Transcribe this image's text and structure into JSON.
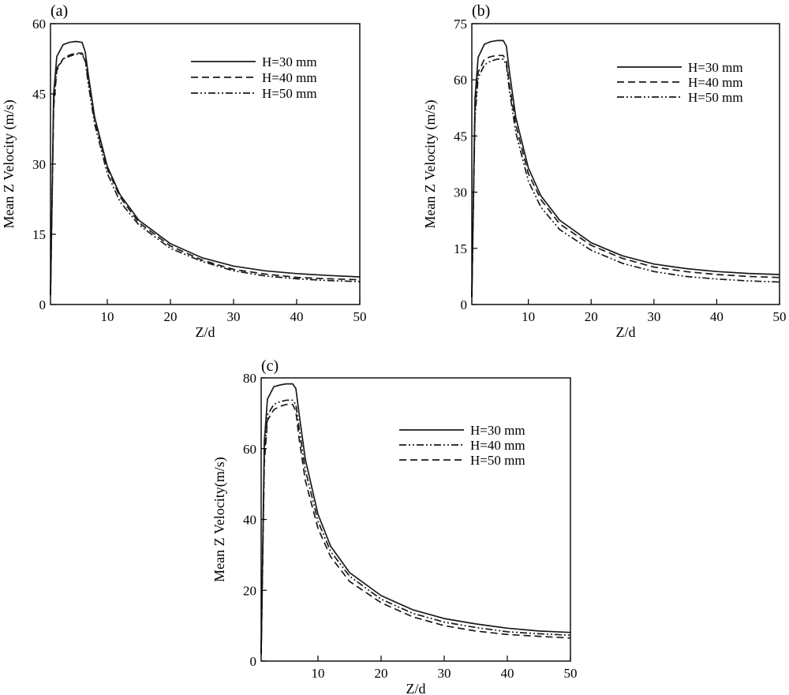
{
  "chart_data": [
    {
      "panel": "(a)",
      "type": "line",
      "xlabel": "Z/d",
      "ylabel": "Mean Z Velocity (m/s)",
      "xlim": [
        1,
        50
      ],
      "ylim": [
        0,
        60
      ],
      "xticks": [
        10,
        20,
        30,
        40,
        50
      ],
      "yticks": [
        0,
        15,
        30,
        45,
        60
      ],
      "grid": false,
      "legend": "top-right",
      "series": [
        {
          "name": "H=30 mm",
          "style": "solid",
          "x": [
            1,
            1.5,
            2,
            3,
            4,
            5,
            6,
            6.5,
            7,
            8,
            10,
            12,
            15,
            20,
            25,
            30,
            35,
            40,
            45,
            50
          ],
          "y": [
            2,
            45,
            53,
            55.5,
            56,
            56.2,
            56,
            54,
            49,
            40,
            29.5,
            23.5,
            18,
            13,
            10,
            8.2,
            7.2,
            6.6,
            6.2,
            5.9
          ]
        },
        {
          "name": "H=40 mm",
          "style": "dashed",
          "x": [
            1,
            1.5,
            2,
            3,
            4,
            5,
            6,
            6.5,
            7,
            8,
            10,
            12,
            15,
            20,
            25,
            30,
            35,
            40,
            45,
            50
          ],
          "y": [
            2,
            42,
            50,
            52.5,
            53.3,
            53.7,
            53.7,
            52.5,
            48,
            39.5,
            29,
            23,
            17.5,
            12.5,
            9.5,
            7.5,
            6.5,
            5.8,
            5.5,
            5.3
          ]
        },
        {
          "name": "H=50 mm",
          "style": "dashdotdot",
          "x": [
            1,
            1.5,
            2,
            3,
            4,
            5,
            6,
            6.5,
            7,
            8,
            10,
            12,
            15,
            20,
            25,
            30,
            35,
            40,
            45,
            50
          ],
          "y": [
            2,
            43,
            50.5,
            52.5,
            53,
            53.5,
            53.5,
            52,
            47,
            38.5,
            28,
            22,
            17,
            12,
            9.2,
            7.2,
            6.1,
            5.5,
            5.1,
            4.9
          ]
        }
      ]
    },
    {
      "panel": "(b)",
      "type": "line",
      "xlabel": "Z/d",
      "ylabel": "Mean Z Velocity (m/s)",
      "xlim": [
        1,
        50
      ],
      "ylim": [
        0,
        75
      ],
      "xticks": [
        10,
        20,
        30,
        40,
        50
      ],
      "yticks": [
        0,
        15,
        30,
        45,
        60,
        75
      ],
      "grid": false,
      "legend": "top-right",
      "series": [
        {
          "name": "H=30 mm",
          "style": "solid",
          "x": [
            1,
            1.5,
            2,
            3,
            4,
            5,
            6,
            6.5,
            7,
            8,
            10,
            12,
            15,
            20,
            25,
            30,
            35,
            40,
            45,
            50
          ],
          "y": [
            2,
            55,
            66,
            69.5,
            70.2,
            70.5,
            70.5,
            69,
            62,
            50,
            36.5,
            29,
            22.5,
            16.5,
            13,
            10.8,
            9.6,
            8.8,
            8.3,
            8
          ]
        },
        {
          "name": "H=40 mm",
          "style": "dashed",
          "x": [
            1,
            1.5,
            2,
            3,
            4,
            5,
            6,
            6.5,
            7,
            8,
            10,
            12,
            15,
            20,
            25,
            30,
            35,
            40,
            45,
            50
          ],
          "y": [
            2,
            52,
            62,
            65.5,
            66.2,
            66.5,
            66.5,
            65,
            58.5,
            48,
            35,
            28,
            21.5,
            15.8,
            12.3,
            10,
            8.8,
            8,
            7.5,
            7.2
          ]
        },
        {
          "name": "H=50 mm",
          "style": "dashdotdot",
          "x": [
            1,
            1.5,
            2,
            3,
            4,
            5,
            6,
            6.5,
            7,
            8,
            10,
            12,
            15,
            20,
            25,
            30,
            35,
            40,
            45,
            50
          ],
          "y": [
            2,
            50,
            60.5,
            64,
            65,
            65.5,
            65.5,
            64,
            57,
            46,
            33,
            26,
            20,
            14.5,
            11,
            8.8,
            7.5,
            6.8,
            6.3,
            6
          ]
        }
      ]
    },
    {
      "panel": "(c)",
      "type": "line",
      "xlabel": "Z/d",
      "ylabel": "Mean Z Velocity(m/s)",
      "xlim": [
        1,
        50
      ],
      "ylim": [
        0,
        80
      ],
      "xticks": [
        10,
        20,
        30,
        40,
        50
      ],
      "yticks": [
        0,
        20,
        40,
        60,
        80
      ],
      "grid": false,
      "legend": "top-right",
      "series": [
        {
          "name": "H=30 mm",
          "style": "solid",
          "x": [
            1,
            1.5,
            2,
            3,
            4,
            5,
            6,
            6.5,
            7,
            8,
            10,
            12,
            15,
            20,
            25,
            30,
            35,
            40,
            45,
            50
          ],
          "y": [
            2,
            62,
            74,
            77.5,
            78,
            78.3,
            78.3,
            77,
            70,
            57,
            41.5,
            32.5,
            25,
            18.5,
            14.5,
            12,
            10.5,
            9.3,
            8.5,
            8.1
          ]
        },
        {
          "name": "H=40 mm",
          "style": "dashdotdot",
          "x": [
            1,
            1.5,
            2,
            3,
            4,
            5,
            6,
            6.5,
            7,
            8,
            10,
            12,
            15,
            20,
            25,
            30,
            35,
            40,
            45,
            50
          ],
          "y": [
            2,
            58,
            69.5,
            72.5,
            73.3,
            73.7,
            73.7,
            72.5,
            66,
            54,
            39.5,
            31,
            24,
            17.5,
            13.5,
            11,
            9.5,
            8.3,
            7.7,
            7.3
          ]
        },
        {
          "name": "H=50 mm",
          "style": "dashed",
          "x": [
            1,
            1.5,
            2,
            3,
            4,
            5,
            6,
            6.5,
            7,
            8,
            10,
            12,
            15,
            20,
            25,
            30,
            35,
            40,
            45,
            50
          ],
          "y": [
            2,
            56,
            68,
            71,
            72,
            72.5,
            72.5,
            70.5,
            63,
            51,
            37.5,
            29.5,
            22.5,
            16.5,
            12.5,
            10,
            8.5,
            7.5,
            7,
            6.5
          ]
        }
      ]
    }
  ]
}
